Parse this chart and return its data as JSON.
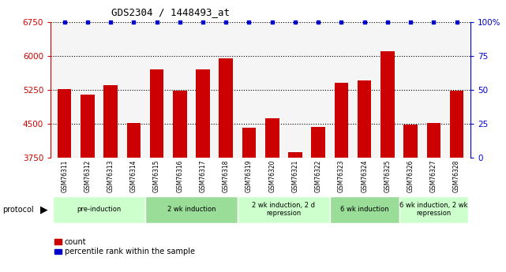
{
  "title": "GDS2304 / 1448493_at",
  "samples": [
    "GSM76311",
    "GSM76312",
    "GSM76313",
    "GSM76314",
    "GSM76315",
    "GSM76316",
    "GSM76317",
    "GSM76318",
    "GSM76319",
    "GSM76320",
    "GSM76321",
    "GSM76322",
    "GSM76323",
    "GSM76324",
    "GSM76325",
    "GSM76326",
    "GSM76327",
    "GSM76328"
  ],
  "counts": [
    5270,
    5150,
    5350,
    4520,
    5700,
    5230,
    5700,
    5950,
    4420,
    4620,
    3870,
    4430,
    5400,
    5450,
    6100,
    4480,
    4520,
    5230
  ],
  "percentile_ranks": [
    100,
    100,
    100,
    100,
    100,
    100,
    100,
    100,
    100,
    100,
    100,
    100,
    100,
    100,
    100,
    100,
    100,
    100
  ],
  "ylim_left": [
    3750,
    6750
  ],
  "yticks_left": [
    3750,
    4500,
    5250,
    6000,
    6750
  ],
  "ylim_right": [
    0,
    100
  ],
  "yticks_right": [
    0,
    25,
    50,
    75,
    100
  ],
  "bar_color": "#cc0000",
  "scatter_color": "#0000cc",
  "bg_color": "#ffffff",
  "grid_color": "#000000",
  "ylabel_left_color": "#cc0000",
  "ylabel_right_color": "#0000cc",
  "protocols": [
    {
      "label": "pre-induction",
      "start": 0,
      "end": 4,
      "color": "#ccffcc"
    },
    {
      "label": "2 wk induction",
      "start": 4,
      "end": 8,
      "color": "#99dd99"
    },
    {
      "label": "2 wk induction, 2 d\nrepression",
      "start": 8,
      "end": 12,
      "color": "#ccffcc"
    },
    {
      "label": "6 wk induction",
      "start": 12,
      "end": 15,
      "color": "#99dd99"
    },
    {
      "label": "6 wk induction, 2 wk\nrepression",
      "start": 15,
      "end": 18,
      "color": "#ccffcc"
    }
  ]
}
